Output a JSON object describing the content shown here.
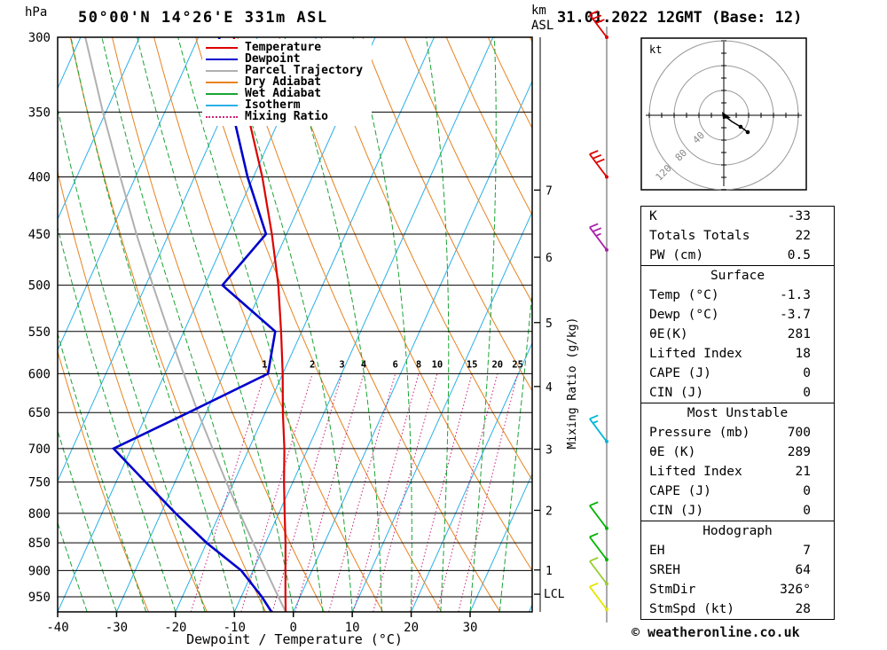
{
  "title": "50°00'N 14°26'E 331m ASL",
  "run_title": "31.01.2022 12GMT (Base: 12)",
  "footer": "© weatheronline.co.uk",
  "axes": {
    "pressure_unit": "hPa",
    "km_label": "km",
    "asl_label": "ASL",
    "x_label": "Dewpoint / Temperature (°C)",
    "mixing_ratio_label": "Mixing Ratio (g/kg)",
    "lcl_label": "LCL"
  },
  "legend": {
    "items": [
      {
        "label": "Temperature",
        "color": "#dd0000",
        "dotted": false
      },
      {
        "label": "Dewpoint",
        "color": "#0000cc",
        "dotted": false
      },
      {
        "label": "Parcel Trajectory",
        "color": "#b0b0b0",
        "dotted": false
      },
      {
        "label": "Dry Adiabat",
        "color": "#e8821e",
        "dotted": false
      },
      {
        "label": "Wet Adiabat",
        "color": "#1aa333",
        "dotted": false
      },
      {
        "label": "Isotherm",
        "color": "#2ab0e8",
        "dotted": false
      },
      {
        "label": "Mixing Ratio",
        "color": "#cc2277",
        "dotted": true
      }
    ]
  },
  "hodograph": {
    "unit": "kt",
    "rings": [
      40,
      80,
      120
    ],
    "trace": [
      [
        0,
        0
      ],
      [
        9,
        7
      ],
      [
        19,
        13
      ],
      [
        27,
        19
      ]
    ]
  },
  "wind_barbs": [
    {
      "pressure": 300,
      "speed_kt": 30,
      "color": "#e00000"
    },
    {
      "pressure": 400,
      "speed_kt": 30,
      "color": "#e00000"
    },
    {
      "pressure": 465,
      "speed_kt": 25,
      "color": "#aa22aa"
    },
    {
      "pressure": 690,
      "speed_kt": 15,
      "color": "#00b8d8"
    },
    {
      "pressure": 825,
      "speed_kt": 10,
      "color": "#00b400"
    },
    {
      "pressure": 880,
      "speed_kt": 10,
      "color": "#00b400"
    },
    {
      "pressure": 925,
      "speed_kt": 10,
      "color": "#9acd32"
    },
    {
      "pressure": 975,
      "speed_kt": 10,
      "color": "#e6e600"
    }
  ],
  "table": {
    "sections": [
      {
        "header": null,
        "rows": [
          [
            "K",
            "-33"
          ],
          [
            "Totals Totals",
            "22"
          ],
          [
            "PW (cm)",
            "0.5"
          ]
        ]
      },
      {
        "header": "Surface",
        "rows": [
          [
            "Temp (°C)",
            "-1.3"
          ],
          [
            "Dewp (°C)",
            "-3.7"
          ],
          [
            "θE(K)",
            "281"
          ],
          [
            "Lifted Index",
            "18"
          ],
          [
            "CAPE (J)",
            "0"
          ],
          [
            "CIN (J)",
            "0"
          ]
        ]
      },
      {
        "header": "Most Unstable",
        "rows": [
          [
            "Pressure (mb)",
            "700"
          ],
          [
            "θE (K)",
            "289"
          ],
          [
            "Lifted Index",
            "21"
          ],
          [
            "CAPE (J)",
            "0"
          ],
          [
            "CIN (J)",
            "0"
          ]
        ]
      },
      {
        "header": "Hodograph",
        "rows": [
          [
            "EH",
            "7"
          ],
          [
            "SREH",
            "64"
          ],
          [
            "StmDir",
            "326°"
          ],
          [
            "StmSpd (kt)",
            "28"
          ]
        ]
      }
    ]
  },
  "chart_data": {
    "type": "line",
    "subtype": "skew-t log-p sounding",
    "title": "50°00'N 14°26'E 331m ASL",
    "xlabel": "Dewpoint / Temperature (°C)",
    "ylabel": "hPa",
    "x_ticks": [
      -40,
      -30,
      -20,
      -10,
      0,
      10,
      20,
      30
    ],
    "xlim": [
      -40,
      40
    ],
    "pressure_ticks": [
      300,
      350,
      400,
      450,
      500,
      550,
      600,
      650,
      700,
      750,
      800,
      850,
      900,
      950
    ],
    "pressure_range": [
      300,
      980
    ],
    "km_ticks": [
      7,
      6,
      5,
      4,
      3,
      2,
      1
    ],
    "km_pressure_levels": [
      [
        7,
        411
      ],
      [
        6,
        472
      ],
      [
        5,
        540
      ],
      [
        4,
        616
      ],
      [
        3,
        701
      ],
      [
        2,
        795
      ],
      [
        1,
        899
      ]
    ],
    "lcl_pressure": 945,
    "mixing_ratio_lines": [
      1,
      2,
      3,
      4,
      6,
      8,
      10,
      15,
      20,
      25
    ],
    "skew": 0.45,
    "grid": true,
    "legend_position": "top-left",
    "colors": {
      "temperature": "#dd0000",
      "dewpoint": "#0000cc",
      "parcel": "#b0b0b0",
      "dry_adiabat": "#e8821e",
      "wet_adiabat": "#1aa333",
      "isotherm": "#2ab0e8",
      "mixing_ratio": "#cc2277",
      "pressure_line": "#000000"
    },
    "series": [
      {
        "name": "Temperature",
        "color": "#dd0000",
        "width": 2.2,
        "points": [
          [
            980,
            -1.3
          ],
          [
            950,
            -2.5
          ],
          [
            900,
            -4.5
          ],
          [
            850,
            -6.6
          ],
          [
            800,
            -9
          ],
          [
            750,
            -11.5
          ],
          [
            700,
            -14
          ],
          [
            650,
            -17
          ],
          [
            600,
            -20
          ],
          [
            550,
            -23.5
          ],
          [
            500,
            -27.5
          ],
          [
            450,
            -32.5
          ],
          [
            400,
            -38.5
          ],
          [
            350,
            -46
          ],
          [
            300,
            -54
          ]
        ]
      },
      {
        "name": "Dewpoint",
        "color": "#0000cc",
        "width": 2.6,
        "points": [
          [
            980,
            -3.7
          ],
          [
            950,
            -6.5
          ],
          [
            900,
            -12
          ],
          [
            850,
            -20
          ],
          [
            800,
            -27.5
          ],
          [
            750,
            -35
          ],
          [
            700,
            -43
          ],
          [
            650,
            -33
          ],
          [
            600,
            -22.5
          ],
          [
            550,
            -24.5
          ],
          [
            500,
            -37
          ],
          [
            450,
            -33.5
          ],
          [
            400,
            -41
          ],
          [
            350,
            -48.5
          ],
          [
            300,
            -56.5
          ]
        ]
      },
      {
        "name": "Parcel Trajectory",
        "color": "#b0b0b0",
        "width": 2,
        "points": [
          [
            980,
            -1.3
          ],
          [
            950,
            -3.7
          ],
          [
            900,
            -7.8
          ],
          [
            850,
            -12.1
          ],
          [
            800,
            -16.6
          ],
          [
            750,
            -21.3
          ],
          [
            700,
            -26.2
          ],
          [
            650,
            -31.4
          ],
          [
            600,
            -36.8
          ],
          [
            550,
            -42.6
          ],
          [
            500,
            -48.8
          ],
          [
            450,
            -55.5
          ],
          [
            400,
            -62.6
          ],
          [
            350,
            -70.5
          ],
          [
            300,
            -79.2
          ]
        ]
      }
    ]
  }
}
